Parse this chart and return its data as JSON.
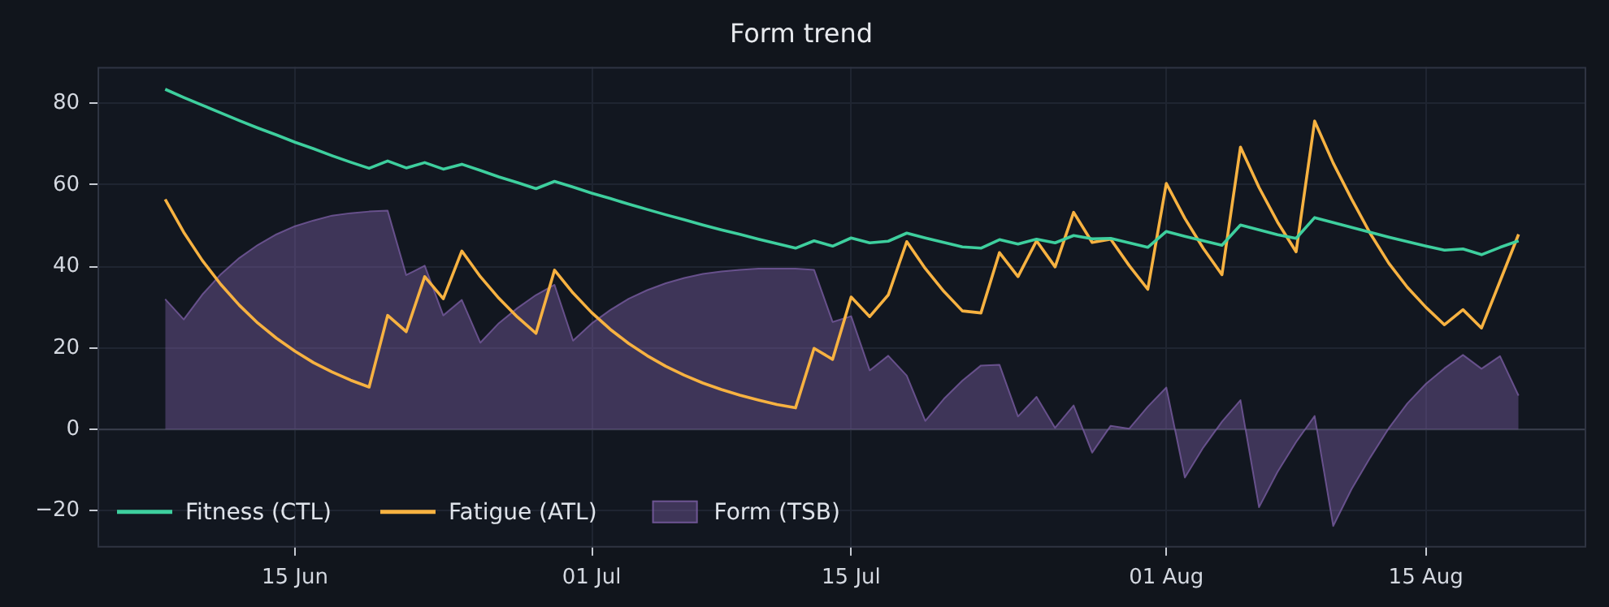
{
  "chart_data": {
    "type": "line",
    "title": "Form trend",
    "x": [
      "--06-08",
      "--06-09",
      "--06-10",
      "--06-11",
      "--06-12",
      "--06-13",
      "--06-14",
      "--06-15",
      "--06-16",
      "--06-17",
      "--06-18",
      "--06-19",
      "--06-20",
      "--06-21",
      "--06-22",
      "--06-23",
      "--06-24",
      "--06-25",
      "--06-26",
      "--06-27",
      "--06-28",
      "--06-29",
      "--06-30",
      "--07-01",
      "--07-02",
      "--07-03",
      "--07-04",
      "--07-05",
      "--07-06",
      "--07-07",
      "--07-08",
      "--07-09",
      "--07-10",
      "--07-11",
      "--07-12",
      "--07-13",
      "--07-14",
      "--07-15",
      "--07-16",
      "--07-17",
      "--07-18",
      "--07-19",
      "--07-20",
      "--07-21",
      "--07-22",
      "--07-23",
      "--07-24",
      "--07-25",
      "--07-26",
      "--07-27",
      "--07-28",
      "--07-29",
      "--07-30",
      "--07-31",
      "--08-01",
      "--08-02",
      "--08-03",
      "--08-04",
      "--08-05",
      "--08-06",
      "--08-07",
      "--08-08",
      "--08-09",
      "--08-10",
      "--08-11",
      "--08-12",
      "--08-13",
      "--08-14",
      "--08-15",
      "--08-16",
      "--08-17",
      "--08-18",
      "--08-19",
      "--08-20"
    ],
    "series": [
      {
        "name": "Fitness (CTL)",
        "type": "line",
        "color": "#3ecf9e",
        "values": [
          83.5,
          81.5,
          79.6,
          77.7,
          75.8,
          74.0,
          72.3,
          70.5,
          68.9,
          67.2,
          65.6,
          64.1,
          65.9,
          64.2,
          65.5,
          63.9,
          65.1,
          63.6,
          62.0,
          60.6,
          59.1,
          60.9,
          59.5,
          58.0,
          56.7,
          55.3,
          54.0,
          52.7,
          51.5,
          50.2,
          49.0,
          47.9,
          46.7,
          45.6,
          44.5,
          46.3,
          45.0,
          47.0,
          45.8,
          46.2,
          48.2,
          47.0,
          45.9,
          44.8,
          44.5,
          46.6,
          45.5,
          46.7,
          45.8,
          47.6,
          46.8,
          46.9,
          45.8,
          44.7,
          48.6,
          47.4,
          46.3,
          45.2,
          50.2,
          49.0,
          47.8,
          46.9,
          52.0,
          50.8,
          49.6,
          48.4,
          47.2,
          46.1,
          45.0,
          44.0,
          44.3,
          42.9,
          44.7,
          46.3
        ]
      },
      {
        "name": "Fatigue (ATL)",
        "type": "line",
        "color": "#f7b241",
        "values": [
          56.5,
          48.4,
          41.5,
          35.6,
          30.5,
          26.1,
          22.4,
          19.2,
          16.4,
          14.1,
          12.1,
          10.4,
          28.0,
          24.0,
          37.5,
          32.1,
          43.8,
          37.5,
          32.2,
          27.6,
          23.6,
          39.1,
          33.5,
          28.7,
          24.6,
          21.1,
          18.1,
          15.5,
          13.3,
          11.4,
          9.8,
          8.4,
          7.2,
          6.1,
          5.3,
          19.9,
          17.2,
          32.5,
          27.7,
          33.0,
          46.1,
          39.5,
          33.9,
          29.1,
          28.6,
          43.4,
          37.5,
          46.3,
          39.9,
          53.3,
          45.9,
          46.7,
          40.2,
          34.4,
          60.4,
          51.8,
          44.4,
          38.0,
          69.3,
          59.4,
          50.9,
          43.6,
          75.7,
          65.4,
          56.5,
          48.1,
          40.8,
          34.9,
          30.0,
          25.7,
          29.4,
          24.9,
          36.4,
          47.9
        ]
      },
      {
        "name": "Form (TSB)",
        "type": "area",
        "color": "#7c5fa6",
        "values": [
          32.0,
          27.0,
          33.1,
          38.1,
          42.1,
          45.3,
          47.9,
          49.9,
          51.3,
          52.5,
          53.1,
          53.5,
          53.7,
          37.9,
          40.2,
          28.0,
          31.8,
          21.3,
          26.1,
          29.8,
          33.0,
          35.5,
          21.8,
          26.0,
          29.3,
          32.1,
          34.2,
          35.9,
          37.2,
          38.2,
          38.8,
          39.2,
          39.5,
          39.5,
          39.5,
          39.2,
          26.4,
          27.8,
          14.5,
          18.1,
          13.2,
          2.1,
          7.5,
          12.0,
          15.7,
          15.9,
          3.2,
          8.0,
          0.4,
          5.9,
          -5.7,
          0.9,
          0.2,
          5.6,
          10.3,
          -11.8,
          -4.4,
          1.9,
          7.2,
          -19.1,
          -10.4,
          -3.1,
          3.3,
          -23.7,
          -14.6,
          -6.9,
          0.3,
          6.4,
          11.2,
          15.0,
          18.3,
          14.9,
          18.0,
          8.3
        ]
      }
    ],
    "xlim": [
      "--06-04T08:24",
      "--08-23T15:36"
    ],
    "xticks": [
      {
        "value": "--06-15",
        "label": "15 Jun"
      },
      {
        "value": "--07-01",
        "label": "01 Jul"
      },
      {
        "value": "--07-15",
        "label": "15 Jul"
      },
      {
        "value": "--08-01",
        "label": "01 Aug"
      },
      {
        "value": "--08-15",
        "label": "15 Aug"
      }
    ],
    "ylim": [
      -29,
      89
    ],
    "yticks": [
      -20,
      0,
      20,
      40,
      60,
      80
    ],
    "ref_lines": [
      {
        "axis": "y",
        "value": 0,
        "color": "#3a3f4c"
      }
    ],
    "grid": true,
    "legend": "bottom left",
    "marker": "none",
    "line_style": "solid"
  }
}
